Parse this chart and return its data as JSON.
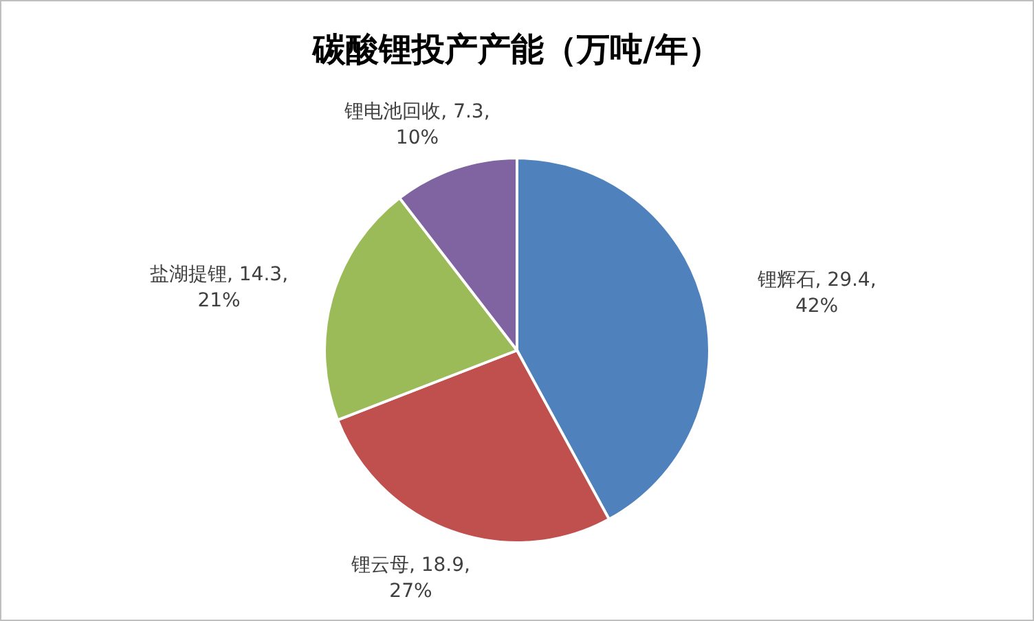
{
  "chart_data": {
    "type": "pie",
    "title": "碳酸锂投产产能（万吨/年）",
    "categories": [
      "锂辉石",
      "锂云母",
      "盐湖提锂",
      "锂电池回收"
    ],
    "values": [
      29.4,
      18.9,
      14.3,
      7.3
    ],
    "value_labels": [
      "29.4, 42%",
      "18.9, 27%",
      "14.3, 21%",
      "7.3, 10%"
    ],
    "colors": [
      "#4f81bd",
      "#c0504d",
      "#9bbb59",
      "#8064a2"
    ]
  }
}
